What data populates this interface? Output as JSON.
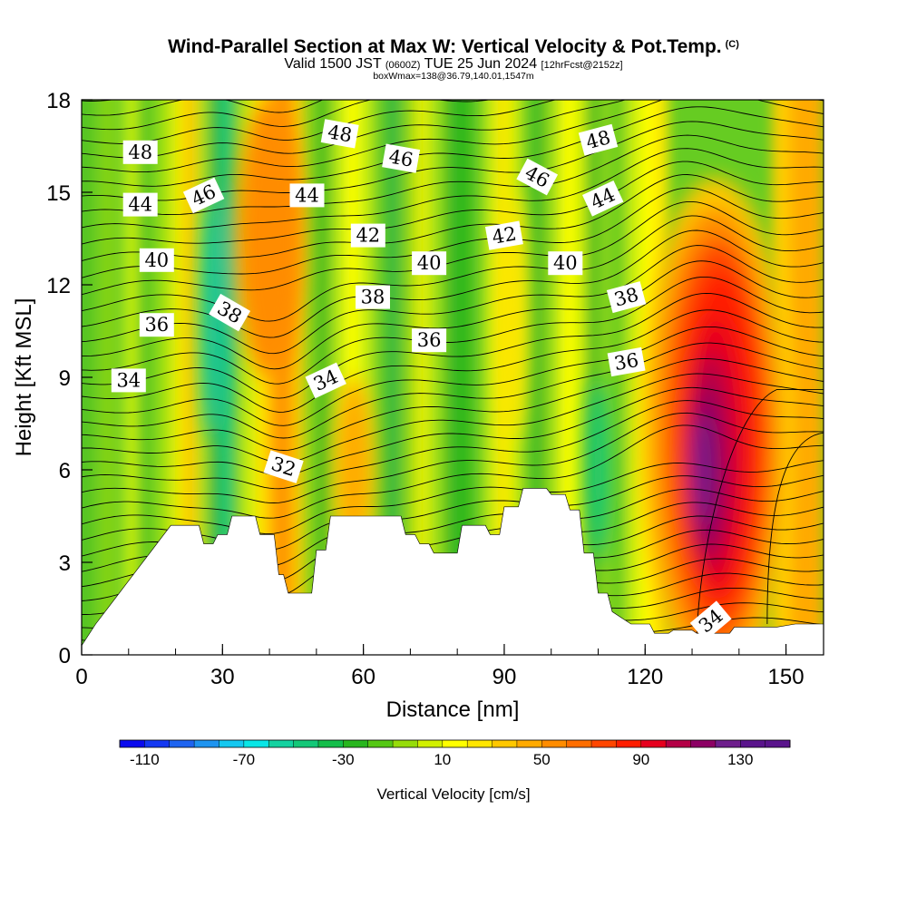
{
  "header": {
    "title": "Wind-Parallel Section at Max W: Vertical Velocity & Pot.Temp.",
    "copyright": "(C)",
    "valid_prefix": "Valid 1500 JST",
    "valid_zulu": "(0600Z)",
    "valid_date": "TUE 25 Jun 2024",
    "forecast_info": "[12hrFcst@2152z]",
    "box_info": "boxWmax=138@36.79,140.01,1547m"
  },
  "chart_data": {
    "type": "heatmap",
    "xlabel": "Distance [nm]",
    "ylabel": "Height [Kft MSL]",
    "xlim": [
      0,
      158
    ],
    "ylim": [
      0,
      18
    ],
    "x_ticks": [
      0,
      30,
      60,
      90,
      120,
      150
    ],
    "x_tick_labels": [
      "0",
      "30",
      "60",
      "90",
      "120",
      "150"
    ],
    "x_minor_step": 10,
    "y_ticks": [
      0,
      3,
      6,
      9,
      12,
      15,
      18
    ],
    "y_tick_labels": [
      "0",
      "3",
      "6",
      "9",
      "12",
      "15",
      "18"
    ],
    "colorbar": {
      "title": "Vertical Velocity [cm/s]",
      "min": -120,
      "max": 150,
      "step": 10,
      "tick_values": [
        -110,
        -70,
        -30,
        10,
        50,
        90,
        130
      ],
      "tick_labels": [
        "-110",
        "-70",
        "-30",
        "10",
        "50",
        "90",
        "130"
      ],
      "colors": [
        "#0a0aee",
        "#1438f2",
        "#1e64f0",
        "#1e94f0",
        "#14c8f0",
        "#08e6e6",
        "#14d2a0",
        "#14c878",
        "#14be4a",
        "#28b61e",
        "#55c814",
        "#96dc0a",
        "#d2f000",
        "#ffff00",
        "#ffe600",
        "#ffc800",
        "#ffaa00",
        "#ff8c00",
        "#ff6e00",
        "#ff4600",
        "#ff1e00",
        "#e6001e",
        "#b40046",
        "#8c0064",
        "#6e1e8c",
        "#5a148c",
        "#5a148c"
      ]
    },
    "terrain_kft": [
      [
        0,
        0.3
      ],
      [
        3,
        1.0
      ],
      [
        6,
        1.6
      ],
      [
        9,
        2.2
      ],
      [
        12,
        2.8
      ],
      [
        15,
        3.4
      ],
      [
        17,
        3.8
      ],
      [
        19,
        4.2
      ],
      [
        25,
        4.2
      ],
      [
        26,
        3.6
      ],
      [
        28,
        3.6
      ],
      [
        29,
        3.9
      ],
      [
        31,
        3.9
      ],
      [
        32,
        4.5
      ],
      [
        37,
        4.5
      ],
      [
        38,
        3.9
      ],
      [
        41,
        3.9
      ],
      [
        42,
        2.6
      ],
      [
        43,
        2.6
      ],
      [
        44,
        2.0
      ],
      [
        49,
        2.0
      ],
      [
        50,
        3.4
      ],
      [
        52,
        3.4
      ],
      [
        53,
        4.5
      ],
      [
        68,
        4.5
      ],
      [
        69,
        3.9
      ],
      [
        71,
        3.9
      ],
      [
        72,
        3.6
      ],
      [
        74,
        3.6
      ],
      [
        75,
        3.3
      ],
      [
        80,
        3.3
      ],
      [
        81,
        4.2
      ],
      [
        86,
        4.2
      ],
      [
        87,
        3.9
      ],
      [
        89,
        3.9
      ],
      [
        90,
        4.8
      ],
      [
        93,
        4.8
      ],
      [
        94,
        5.4
      ],
      [
        99,
        5.4
      ],
      [
        100,
        5.2
      ],
      [
        103,
        5.2
      ],
      [
        104,
        4.7
      ],
      [
        106,
        4.7
      ],
      [
        107,
        3.3
      ],
      [
        109,
        3.3
      ],
      [
        110,
        2.0
      ],
      [
        112,
        2.0
      ],
      [
        113,
        1.4
      ],
      [
        115,
        1.2
      ],
      [
        117,
        1.0
      ],
      [
        121,
        1.0
      ],
      [
        122,
        0.7
      ],
      [
        125,
        0.7
      ],
      [
        126,
        0.8
      ],
      [
        130,
        0.8
      ],
      [
        131,
        0.7
      ],
      [
        138,
        0.7
      ],
      [
        139,
        0.9
      ],
      [
        148,
        0.9
      ],
      [
        152,
        1.0
      ],
      [
        158,
        1.0
      ]
    ],
    "contour_labels": [
      {
        "value": "48",
        "x": 12.5,
        "y": 16.3,
        "angle": 0
      },
      {
        "value": "48",
        "x": 55,
        "y": 16.9,
        "angle": 10
      },
      {
        "value": "46",
        "x": 68,
        "y": 16.1,
        "angle": 10
      },
      {
        "value": "46",
        "x": 26,
        "y": 14.9,
        "angle": -25
      },
      {
        "value": "46",
        "x": 97,
        "y": 15.5,
        "angle": 28
      },
      {
        "value": "48",
        "x": 110,
        "y": 16.7,
        "angle": -15
      },
      {
        "value": "44",
        "x": 12.5,
        "y": 14.6,
        "angle": 0
      },
      {
        "value": "44",
        "x": 48,
        "y": 14.9,
        "angle": 0
      },
      {
        "value": "44",
        "x": 111,
        "y": 14.8,
        "angle": -25
      },
      {
        "value": "42",
        "x": 61,
        "y": 13.6,
        "angle": 0
      },
      {
        "value": "42",
        "x": 90,
        "y": 13.6,
        "angle": -10
      },
      {
        "value": "40",
        "x": 16,
        "y": 12.8,
        "angle": 0
      },
      {
        "value": "40",
        "x": 74,
        "y": 12.7,
        "angle": 0
      },
      {
        "value": "40",
        "x": 103,
        "y": 12.7,
        "angle": 0
      },
      {
        "value": "38",
        "x": 31.5,
        "y": 11.1,
        "angle": 30
      },
      {
        "value": "38",
        "x": 62,
        "y": 11.6,
        "angle": 0
      },
      {
        "value": "38",
        "x": 116,
        "y": 11.6,
        "angle": -15
      },
      {
        "value": "36",
        "x": 16,
        "y": 10.7,
        "angle": 0
      },
      {
        "value": "36",
        "x": 74,
        "y": 10.2,
        "angle": 0
      },
      {
        "value": "36",
        "x": 116,
        "y": 9.5,
        "angle": -10
      },
      {
        "value": "34",
        "x": 10,
        "y": 8.9,
        "angle": 0
      },
      {
        "value": "34",
        "x": 52,
        "y": 8.9,
        "angle": -25
      },
      {
        "value": "34",
        "x": 134,
        "y": 1.1,
        "angle": -40
      },
      {
        "value": "32",
        "x": 43,
        "y": 6.1,
        "angle": 18
      }
    ]
  }
}
